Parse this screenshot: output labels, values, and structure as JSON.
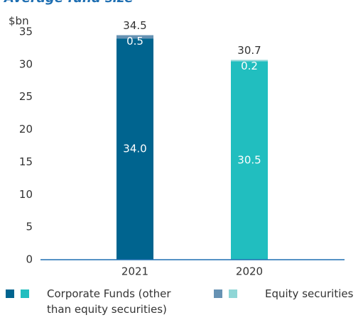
{
  "chart_data": {
    "type": "stacked-bar",
    "title": "Average fund size",
    "y_label": "$bn",
    "categories": [
      "2021",
      "2020"
    ],
    "series": [
      {
        "name": "Corporate Funds (other than equity securities)",
        "colors": [
          "#00648f",
          "#21bebf"
        ],
        "values": [
          34.0,
          30.5
        ],
        "value_labels": [
          "34.0",
          "30.5"
        ]
      },
      {
        "name": "Equity securities",
        "colors": [
          "#6692b3",
          "#8fd6d6"
        ],
        "values": [
          0.5,
          0.2
        ]
      }
    ],
    "totals": [
      34.5,
      30.7
    ],
    "ylim": [
      0,
      35
    ],
    "yticks": [
      0,
      5,
      10,
      15,
      20,
      25,
      30,
      35
    ]
  }
}
